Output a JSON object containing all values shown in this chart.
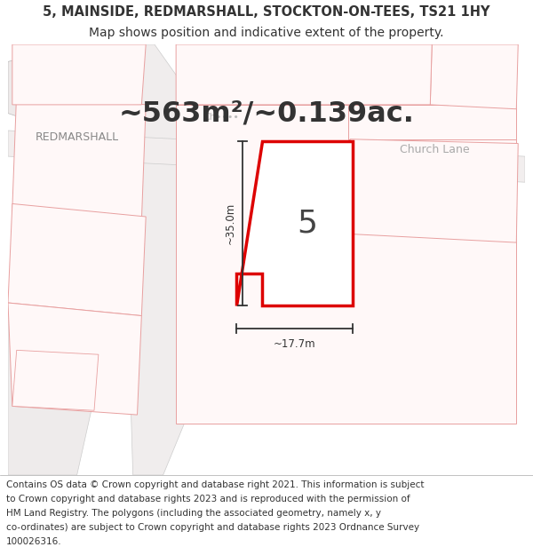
{
  "title_line1": "5, MAINSIDE, REDMARSHALL, STOCKTON-ON-TEES, TS21 1HY",
  "title_line2": "Map shows position and indicative extent of the property.",
  "area_text": "~563m²/~0.139ac.",
  "property_number": "5",
  "dim_height": "~35.0m",
  "dim_width": "~17.7m",
  "street_label_left": "REDMARSHALL",
  "street_label_right": "Church Lane",
  "footer_text_lines": [
    "Contains OS data © Crown copyright and database right 2021. This information is subject",
    "to Crown copyright and database rights 2023 and is reproduced with the permission of",
    "HM Land Registry. The polygons (including the associated geometry, namely x, y",
    "co-ordinates) are subject to Crown copyright and database rights 2023 Ordnance Survey",
    "100026316."
  ],
  "bg_color": "#ffffff",
  "map_bg": "#f8f6f6",
  "property_fill": "#ffffff",
  "property_edge": "#dd0000",
  "road_fill": "#ffffff",
  "road_edge": "#aaaaaa",
  "building_fill": "#e8e8e8",
  "building_edge": "#bbbbbb",
  "pink_edge": "#e8a0a0",
  "dim_color": "#333333",
  "text_dark": "#333333",
  "text_gray": "#888888",
  "text_light_gray": "#aaaaaa",
  "title_fontsize": 10.5,
  "footer_fontsize": 7.5,
  "area_fontsize": 23,
  "label_fontsize": 9,
  "dim_fontsize": 8.5
}
